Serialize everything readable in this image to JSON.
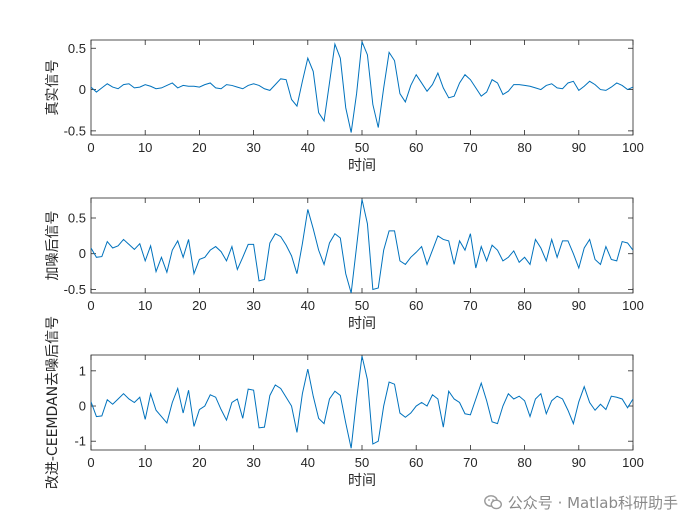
{
  "chart_data": [
    {
      "type": "line",
      "ylabel": "真实信号",
      "xlabel": "时间",
      "xlim": [
        0,
        100
      ],
      "ylim": [
        -0.55,
        0.6
      ],
      "xticks": [
        0,
        10,
        20,
        30,
        40,
        50,
        60,
        70,
        80,
        90,
        100
      ],
      "yticks": [
        -0.5,
        0,
        0.5
      ],
      "ytick_labels": [
        "-0.5",
        "0",
        "0.5"
      ],
      "x": [
        0,
        1,
        2,
        3,
        4,
        5,
        6,
        7,
        8,
        9,
        10,
        11,
        12,
        13,
        14,
        15,
        16,
        17,
        18,
        19,
        20,
        21,
        22,
        23,
        24,
        25,
        26,
        27,
        28,
        29,
        30,
        31,
        32,
        33,
        34,
        35,
        36,
        37,
        38,
        39,
        40,
        41,
        42,
        43,
        44,
        45,
        46,
        47,
        48,
        49,
        50,
        51,
        52,
        53,
        54,
        55,
        56,
        57,
        58,
        59,
        60,
        61,
        62,
        63,
        64,
        65,
        66,
        67,
        68,
        69,
        70,
        71,
        72,
        73,
        74,
        75,
        76,
        77,
        78,
        79,
        80,
        81,
        82,
        83,
        84,
        85,
        86,
        87,
        88,
        89,
        90,
        91,
        92,
        93,
        94,
        95,
        96,
        97,
        98,
        99,
        100
      ],
      "values": [
        0.03,
        -0.03,
        0.02,
        0.07,
        0.03,
        0.01,
        0.06,
        0.07,
        0.02,
        0.03,
        0.06,
        0.04,
        0.01,
        0.02,
        0.05,
        0.08,
        0.02,
        0.05,
        0.04,
        0.04,
        0.03,
        0.06,
        0.08,
        0.02,
        0.01,
        0.06,
        0.05,
        0.03,
        0.01,
        0.05,
        0.07,
        0.05,
        0.01,
        -0.01,
        0.06,
        0.13,
        0.12,
        -0.12,
        -0.2,
        0.1,
        0.38,
        0.22,
        -0.28,
        -0.38,
        0.08,
        0.55,
        0.38,
        -0.22,
        -0.52,
        -0.05,
        0.58,
        0.42,
        -0.18,
        -0.46,
        0.02,
        0.45,
        0.35,
        -0.05,
        -0.15,
        0.05,
        0.18,
        0.08,
        -0.02,
        0.06,
        0.2,
        0.02,
        -0.1,
        -0.08,
        0.08,
        0.18,
        0.12,
        0.02,
        -0.08,
        -0.03,
        0.12,
        0.08,
        -0.06,
        -0.02,
        0.06,
        0.06,
        0.05,
        0.04,
        0.02,
        0.0,
        0.05,
        0.07,
        0.02,
        0.01,
        0.08,
        0.1,
        -0.01,
        0.04,
        0.1,
        0.06,
        0.0,
        -0.01,
        0.03,
        0.08,
        0.05,
        0.0,
        0.03
      ]
    },
    {
      "type": "line",
      "ylabel": "加噪后信号",
      "xlabel": "时间",
      "xlim": [
        0,
        100
      ],
      "ylim": [
        -0.55,
        0.78
      ],
      "xticks": [
        0,
        10,
        20,
        30,
        40,
        50,
        60,
        70,
        80,
        90,
        100
      ],
      "yticks": [
        -0.5,
        0,
        0.5
      ],
      "ytick_labels": [
        "-0.5",
        "0",
        "0.5"
      ],
      "x": [
        0,
        1,
        2,
        3,
        4,
        5,
        6,
        7,
        8,
        9,
        10,
        11,
        12,
        13,
        14,
        15,
        16,
        17,
        18,
        19,
        20,
        21,
        22,
        23,
        24,
        25,
        26,
        27,
        28,
        29,
        30,
        31,
        32,
        33,
        34,
        35,
        36,
        37,
        38,
        39,
        40,
        41,
        42,
        43,
        44,
        45,
        46,
        47,
        48,
        49,
        50,
        51,
        52,
        53,
        54,
        55,
        56,
        57,
        58,
        59,
        60,
        61,
        62,
        63,
        64,
        65,
        66,
        67,
        68,
        69,
        70,
        71,
        72,
        73,
        74,
        75,
        76,
        77,
        78,
        79,
        80,
        81,
        82,
        83,
        84,
        85,
        86,
        87,
        88,
        89,
        90,
        91,
        92,
        93,
        94,
        95,
        96,
        97,
        98,
        99,
        100
      ],
      "values": [
        0.08,
        -0.05,
        -0.04,
        0.17,
        0.08,
        0.11,
        0.2,
        0.13,
        0.06,
        0.14,
        -0.1,
        0.11,
        -0.25,
        -0.05,
        -0.26,
        0.05,
        0.18,
        -0.05,
        0.2,
        -0.28,
        -0.08,
        -0.05,
        0.05,
        0.1,
        0.03,
        -0.1,
        0.1,
        -0.22,
        -0.05,
        0.13,
        0.13,
        -0.38,
        -0.36,
        0.15,
        0.28,
        0.24,
        0.12,
        -0.03,
        -0.28,
        0.14,
        0.62,
        0.35,
        0.05,
        -0.15,
        0.15,
        0.28,
        0.22,
        -0.28,
        -0.55,
        0.1,
        0.76,
        0.42,
        -0.5,
        -0.48,
        0.05,
        0.32,
        0.32,
        -0.1,
        -0.15,
        -0.05,
        0.02,
        0.1,
        -0.15,
        0.05,
        0.25,
        0.2,
        0.18,
        -0.15,
        0.18,
        0.05,
        0.28,
        -0.2,
        0.1,
        -0.1,
        0.12,
        0.05,
        -0.1,
        -0.05,
        0.04,
        -0.12,
        -0.05,
        -0.15,
        0.2,
        0.08,
        -0.1,
        0.2,
        -0.05,
        0.18,
        0.18,
        0.0,
        -0.2,
        0.08,
        0.2,
        -0.08,
        -0.15,
        0.1,
        -0.08,
        -0.1,
        0.17,
        0.15,
        0.05
      ]
    },
    {
      "type": "line",
      "ylabel": "改进-CEEMDAN去噪后信号",
      "xlabel": "时间",
      "xlim": [
        0,
        100
      ],
      "ylim": [
        -1.25,
        1.45
      ],
      "xticks": [
        0,
        10,
        20,
        30,
        40,
        50,
        60,
        70,
        80,
        90,
        100
      ],
      "yticks": [
        -1,
        0,
        1
      ],
      "ytick_labels": [
        "-1",
        "0",
        "1"
      ],
      "x": [
        0,
        1,
        2,
        3,
        4,
        5,
        6,
        7,
        8,
        9,
        10,
        11,
        12,
        13,
        14,
        15,
        16,
        17,
        18,
        19,
        20,
        21,
        22,
        23,
        24,
        25,
        26,
        27,
        28,
        29,
        30,
        31,
        32,
        33,
        34,
        35,
        36,
        37,
        38,
        39,
        40,
        41,
        42,
        43,
        44,
        45,
        46,
        47,
        48,
        49,
        50,
        51,
        52,
        53,
        54,
        55,
        56,
        57,
        58,
        59,
        60,
        61,
        62,
        63,
        64,
        65,
        66,
        67,
        68,
        69,
        70,
        71,
        72,
        73,
        74,
        75,
        76,
        77,
        78,
        79,
        80,
        81,
        82,
        83,
        84,
        85,
        86,
        87,
        88,
        89,
        90,
        91,
        92,
        93,
        94,
        95,
        96,
        97,
        98,
        99,
        100
      ],
      "values": [
        0.12,
        -0.3,
        -0.28,
        0.18,
        0.05,
        0.2,
        0.35,
        0.2,
        0.1,
        0.25,
        -0.38,
        0.35,
        -0.12,
        -0.3,
        -0.48,
        0.1,
        0.5,
        -0.2,
        0.45,
        -0.58,
        -0.1,
        0.0,
        0.32,
        0.25,
        -0.1,
        -0.4,
        0.1,
        0.2,
        -0.35,
        0.48,
        0.45,
        -0.62,
        -0.6,
        0.3,
        0.6,
        0.5,
        0.25,
        0.0,
        -0.75,
        0.35,
        1.05,
        0.28,
        -0.35,
        -0.5,
        0.2,
        0.42,
        0.3,
        -0.48,
        -1.2,
        0.2,
        1.42,
        0.75,
        -1.08,
        -1.0,
        0.0,
        0.68,
        0.62,
        -0.2,
        -0.32,
        -0.2,
        0.0,
        0.1,
        0.0,
        0.32,
        0.2,
        -0.6,
        0.42,
        0.2,
        0.1,
        -0.22,
        -0.25,
        0.2,
        0.65,
        0.15,
        -0.45,
        -0.5,
        0.0,
        0.35,
        0.2,
        0.28,
        0.15,
        -0.3,
        0.2,
        0.35,
        -0.22,
        0.15,
        0.28,
        0.2,
        -0.12,
        -0.5,
        0.12,
        0.55,
        0.1,
        -0.12,
        0.05,
        -0.1,
        0.28,
        0.25,
        0.2,
        -0.05,
        0.2
      ]
    }
  ],
  "watermark": {
    "icon": "wechat-icon",
    "text": "公众号 · Matlab科研助手"
  }
}
